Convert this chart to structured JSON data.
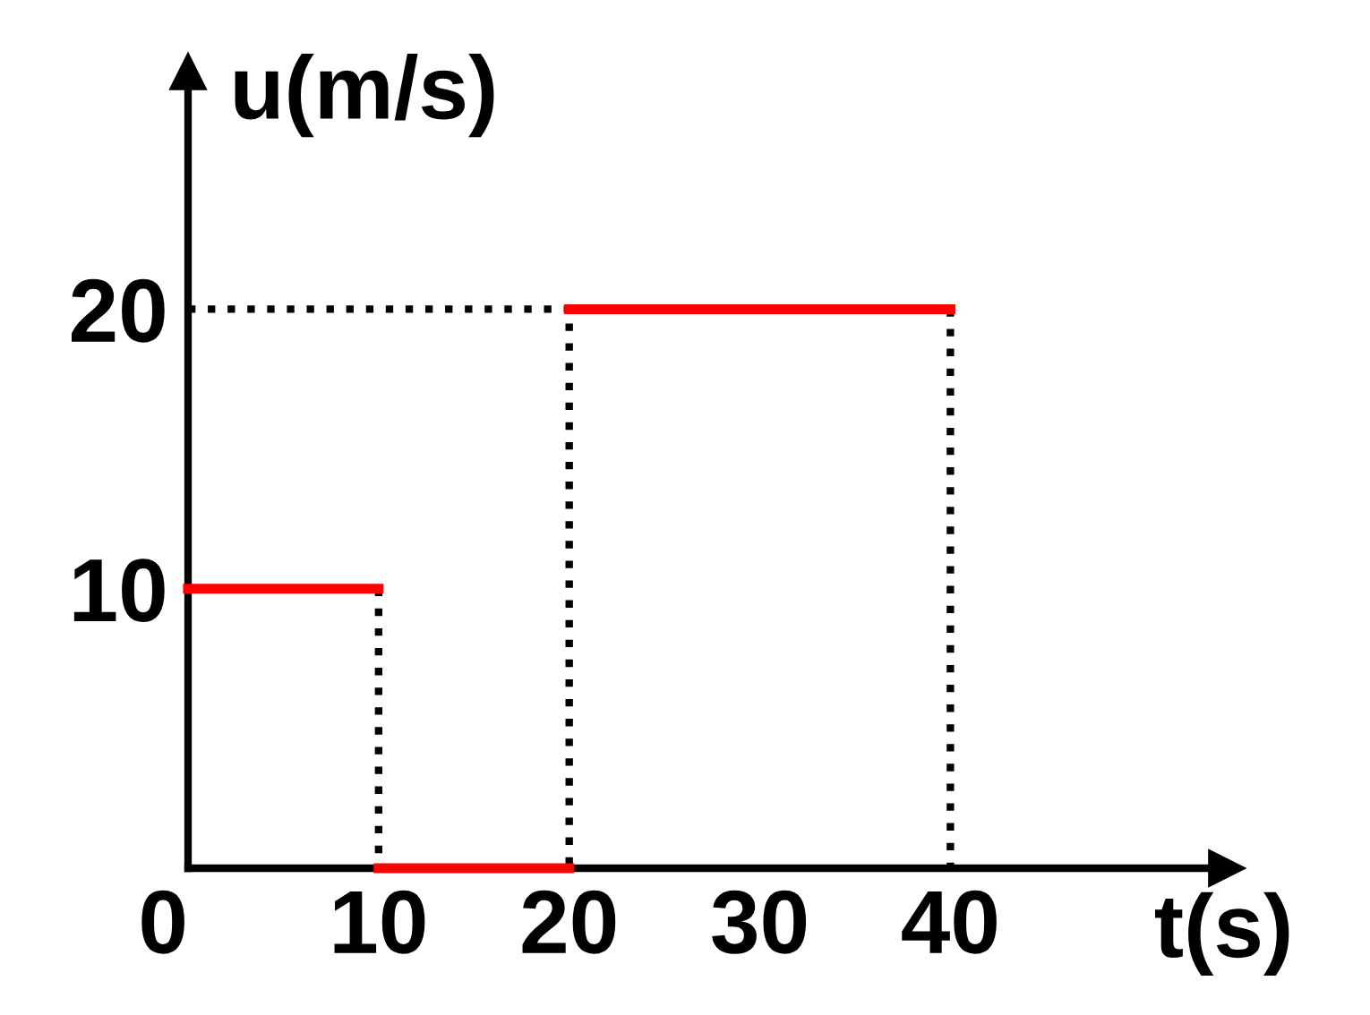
{
  "chart_data": {
    "type": "line",
    "xlabel": "t(s)",
    "ylabel": "u(m/s)",
    "xlim": [
      0,
      54.5
    ],
    "ylim": [
      0,
      28.5
    ],
    "xticks": [
      0,
      10,
      20,
      30,
      40
    ],
    "yticks": [
      10,
      20
    ],
    "series": [
      {
        "color": "#ff0000",
        "line_style": "solid",
        "x": [
          0,
          10
        ],
        "values": [
          10,
          10
        ]
      },
      {
        "color": "#ff0000",
        "line_style": "solid",
        "x": [
          10,
          20
        ],
        "values": [
          0,
          0
        ]
      },
      {
        "color": "#ff0000",
        "line_style": "solid",
        "x": [
          20,
          40
        ],
        "values": [
          20,
          20
        ]
      },
      {
        "color": "#000000",
        "line_style": "dotted",
        "x": [
          10,
          10
        ],
        "values": [
          10,
          0
        ]
      },
      {
        "color": "#000000",
        "line_style": "dotted",
        "x": [
          0,
          20,
          20
        ],
        "values": [
          20,
          20,
          0
        ]
      },
      {
        "color": "#000000",
        "line_style": "dotted",
        "x": [
          40,
          40
        ],
        "values": [
          20,
          0
        ]
      }
    ],
    "grid": false,
    "legend": false
  }
}
